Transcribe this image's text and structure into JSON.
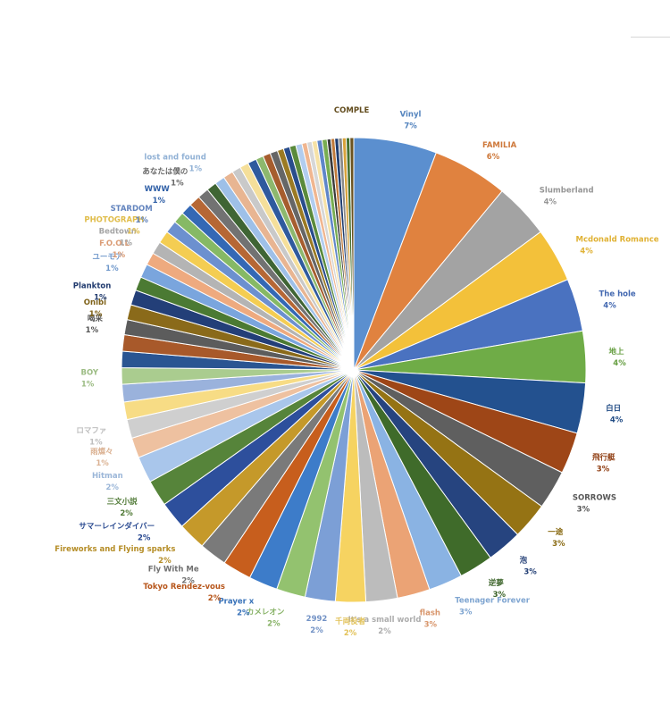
{
  "chart_data": {
    "type": "pie",
    "title": "",
    "data_labels": "percent",
    "legend": "none",
    "slices": [
      {
        "label": "Vinyl",
        "percent": "7%",
        "value": 6.6,
        "color": "#5b8fcf",
        "show_label": true
      },
      {
        "label": "FAMILIA",
        "percent": "6%",
        "value": 6.0,
        "color": "#e0823f",
        "show_label": true
      },
      {
        "label": "Slumberland",
        "percent": "4%",
        "value": 4.4,
        "color": "#a3a3a3",
        "show_label": true
      },
      {
        "label": "Mcdonald Romance",
        "percent": "4%",
        "value": 4.3,
        "color": "#f3c13a",
        "show_label": true
      },
      {
        "label": "The hole",
        "percent": "4%",
        "value": 4.2,
        "color": "#4a72c0",
        "show_label": true
      },
      {
        "label": "地上",
        "percent": "4%",
        "value": 4.1,
        "color": "#6fac47",
        "show_label": true
      },
      {
        "label": "白日",
        "percent": "4%",
        "value": 4.0,
        "color": "#23518f",
        "show_label": true
      },
      {
        "label": "飛行艇",
        "percent": "3%",
        "value": 3.3,
        "color": "#9e4617",
        "show_label": true
      },
      {
        "label": "SORROWS",
        "percent": "3%",
        "value": 3.1,
        "color": "#5f5f5f",
        "show_label": true
      },
      {
        "label": "一途",
        "percent": "3%",
        "value": 2.9,
        "color": "#957314",
        "show_label": true
      },
      {
        "label": "泡",
        "percent": "3%",
        "value": 2.8,
        "color": "#26447f",
        "show_label": true
      },
      {
        "label": "逆夢",
        "percent": "3%",
        "value": 2.7,
        "color": "#3f6b2a",
        "show_label": true
      },
      {
        "label": "Teenager Forever",
        "percent": "3%",
        "value": 2.7,
        "color": "#8ab3e3",
        "show_label": true
      },
      {
        "label": "flash",
        "percent": "3%",
        "value": 2.6,
        "color": "#eba375",
        "show_label": true
      },
      {
        "label": "It's a small world",
        "percent": "2%",
        "value": 2.5,
        "color": "#bcbcbc",
        "show_label": true
      },
      {
        "label": "千両役者",
        "percent": "2%",
        "value": 2.4,
        "color": "#f6d361",
        "show_label": true
      },
      {
        "label": "2992",
        "percent": "2%",
        "value": 2.4,
        "color": "#7c9fd6",
        "show_label": true
      },
      {
        "label": "カメレオン",
        "percent": "2%",
        "value": 2.3,
        "color": "#93c26f",
        "show_label": true
      },
      {
        "label": "Prayer x",
        "percent": "2%",
        "value": 2.3,
        "color": "#3d7cc9",
        "show_label": true
      },
      {
        "label": "Tokyo Rendez-vous",
        "percent": "2%",
        "value": 2.3,
        "color": "#c75e1d",
        "show_label": true
      },
      {
        "label": "Fly With Me",
        "percent": "2%",
        "value": 2.2,
        "color": "#7a7a7a",
        "show_label": true
      },
      {
        "label": "Fireworks and Flying sparks",
        "percent": "2%",
        "value": 2.2,
        "color": "#c5992a",
        "show_label": true
      },
      {
        "label": "サマーレインダイバー",
        "percent": "2%",
        "value": 2.2,
        "color": "#2d4f9c",
        "show_label": true
      },
      {
        "label": "三文小説",
        "percent": "2%",
        "value": 2.1,
        "color": "#56843a",
        "show_label": true
      },
      {
        "label": "Hitman",
        "percent": "2%",
        "value": 2.1,
        "color": "#a9c6eb",
        "show_label": true
      },
      {
        "label": "雨燦々",
        "percent": "1%",
        "value": 1.6,
        "color": "#eec1a0",
        "show_label": true
      },
      {
        "label": "ロマファ",
        "percent": "1%",
        "value": 1.5,
        "color": "#cfcfcf",
        "show_label": true
      },
      {
        "label": "",
        "percent": "",
        "value": 1.4,
        "color": "#f7dc85",
        "show_label": false
      },
      {
        "label": "",
        "percent": "",
        "value": 1.4,
        "color": "#9ab2dc",
        "show_label": false
      },
      {
        "label": "BOY",
        "percent": "1%",
        "value": 1.3,
        "color": "#aacc8f",
        "show_label": true
      },
      {
        "label": "",
        "percent": "",
        "value": 1.3,
        "color": "#2a5592",
        "show_label": false
      },
      {
        "label": "",
        "percent": "",
        "value": 1.3,
        "color": "#a8592a",
        "show_label": false
      },
      {
        "label": "喝采",
        "percent": "1%",
        "value": 1.2,
        "color": "#5c5c5c",
        "show_label": true
      },
      {
        "label": "Onibi",
        "percent": "1%",
        "value": 1.2,
        "color": "#8a6a1a",
        "show_label": true
      },
      {
        "label": "Plankton",
        "percent": "1%",
        "value": 1.2,
        "color": "#233f78",
        "show_label": true
      },
      {
        "label": "",
        "percent": "",
        "value": 1.1,
        "color": "#4b7a33",
        "show_label": false
      },
      {
        "label": "ユーモア",
        "percent": "1%",
        "value": 1.1,
        "color": "#7aa5dd",
        "show_label": true
      },
      {
        "label": "F.O.O.L",
        "percent": "1%",
        "value": 1.0,
        "color": "#eeaa7f",
        "show_label": true
      },
      {
        "label": "Bedtown",
        "percent": "1%",
        "value": 1.0,
        "color": "#b4b4b4",
        "show_label": true
      },
      {
        "label": "PHOTOGRAPH",
        "percent": "1%",
        "value": 1.0,
        "color": "#f4cd52",
        "show_label": true
      },
      {
        "label": "STARDOM",
        "percent": "1%",
        "value": 1.0,
        "color": "#6c90cf",
        "show_label": true
      },
      {
        "label": "",
        "percent": "",
        "value": 0.9,
        "color": "#86b965",
        "show_label": false
      },
      {
        "label": "WWW",
        "percent": "1%",
        "value": 0.9,
        "color": "#3468b5",
        "show_label": true
      },
      {
        "label": "",
        "percent": "",
        "value": 0.9,
        "color": "#b66735",
        "show_label": false
      },
      {
        "label": "あなたは僕の",
        "percent": "1%",
        "value": 0.9,
        "color": "#727272",
        "show_label": true
      },
      {
        "label": "",
        "percent": "",
        "value": 0.8,
        "color": "#3f6534",
        "show_label": false
      },
      {
        "label": "lost and found",
        "percent": "1%",
        "value": 0.8,
        "color": "#9ec0e8",
        "show_label": true
      },
      {
        "label": "",
        "percent": "",
        "value": 0.8,
        "color": "#e8b592",
        "show_label": false
      },
      {
        "label": "",
        "percent": "",
        "value": 0.7,
        "color": "#c9c9c9",
        "show_label": false
      },
      {
        "label": "",
        "percent": "",
        "value": 0.7,
        "color": "#f5df9a",
        "show_label": false
      },
      {
        "label": "",
        "percent": "",
        "value": 0.7,
        "color": "#2f5a9e",
        "show_label": false
      },
      {
        "label": "",
        "percent": "",
        "value": 0.6,
        "color": "#8db86e",
        "show_label": false
      },
      {
        "label": "",
        "percent": "",
        "value": 0.6,
        "color": "#a65d2e",
        "show_label": false
      },
      {
        "label": "",
        "percent": "",
        "value": 0.6,
        "color": "#666666",
        "show_label": false
      },
      {
        "label": "",
        "percent": "",
        "value": 0.5,
        "color": "#9b7a23",
        "show_label": false
      },
      {
        "label": "",
        "percent": "",
        "value": 0.5,
        "color": "#294d8c",
        "show_label": false
      },
      {
        "label": "",
        "percent": "",
        "value": 0.5,
        "color": "#5a8a3c",
        "show_label": false
      },
      {
        "label": "",
        "percent": "",
        "value": 0.5,
        "color": "#b2cdef",
        "show_label": false
      },
      {
        "label": "",
        "percent": "",
        "value": 0.4,
        "color": "#f0b690",
        "show_label": false
      },
      {
        "label": "",
        "percent": "",
        "value": 0.4,
        "color": "#d7d7d7",
        "show_label": false
      },
      {
        "label": "",
        "percent": "",
        "value": 0.4,
        "color": "#f6e2a6",
        "show_label": false
      },
      {
        "label": "",
        "percent": "",
        "value": 0.4,
        "color": "#5f86c9",
        "show_label": false
      },
      {
        "label": "",
        "percent": "",
        "value": 0.4,
        "color": "#78ad52",
        "show_label": false
      },
      {
        "label": "",
        "percent": "",
        "value": 0.3,
        "color": "#3a3a3a",
        "show_label": false
      },
      {
        "label": "",
        "percent": "",
        "value": 0.3,
        "color": "#c07a3a",
        "show_label": false
      },
      {
        "label": "",
        "percent": "",
        "value": 0.3,
        "color": "#1f3d70",
        "show_label": false
      },
      {
        "label": "",
        "percent": "",
        "value": 0.3,
        "color": "#8a8a8a",
        "show_label": false
      },
      {
        "label": "",
        "percent": "",
        "value": 0.3,
        "color": "#d8a23a",
        "show_label": false
      },
      {
        "label": "",
        "percent": "",
        "value": 0.3,
        "color": "#446f2e",
        "show_label": false
      },
      {
        "label": "COMPLE",
        "percent": "",
        "value": 0.3,
        "color": "#6b5320",
        "show_label": true
      }
    ]
  }
}
